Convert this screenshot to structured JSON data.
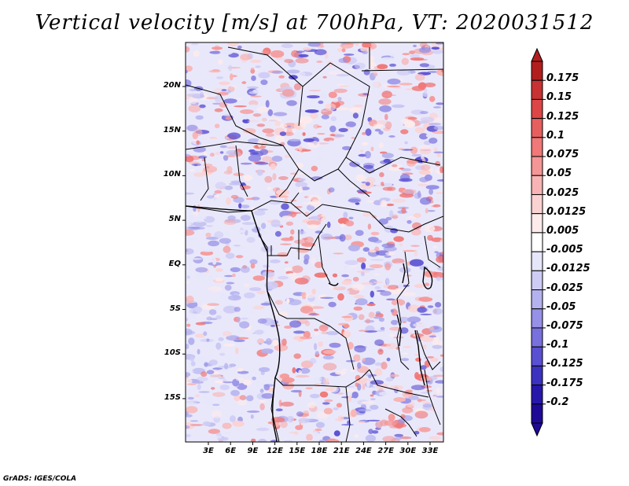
{
  "title": "Vertical velocity [m/s] at 700hPa, VT: 2020031512",
  "credit": "GrADS: IGES/COLA",
  "map": {
    "lat_labels": [
      "20N",
      "15N",
      "10N",
      "5N",
      "EQ",
      "5S",
      "10S",
      "15S"
    ],
    "lon_labels": [
      "3E",
      "6E",
      "9E",
      "12E",
      "15E",
      "18E",
      "21E",
      "24E",
      "27E",
      "30E",
      "33E"
    ]
  },
  "colorbar": {
    "labels": [
      "0.175",
      "0.15",
      "0.125",
      "0.1",
      "0.075",
      "0.05",
      "0.025",
      "0.0125",
      "0.005",
      "-0.005",
      "-0.0125",
      "-0.025",
      "-0.05",
      "-0.075",
      "-0.1",
      "-0.125",
      "-0.175",
      "-0.2"
    ],
    "colors": [
      "#b21e1e",
      "#c83232",
      "#dc4646",
      "#e65f5f",
      "#f07878",
      "#f59696",
      "#f8b4b4",
      "#fbd2d2",
      "#fdebeb",
      "#ffffff",
      "#e6e6fa",
      "#ceccf5",
      "#b4b2ee",
      "#9690e6",
      "#7870dc",
      "#5a50d2",
      "#3c32c0",
      "#2818aa",
      "#1e0a96"
    ]
  }
}
